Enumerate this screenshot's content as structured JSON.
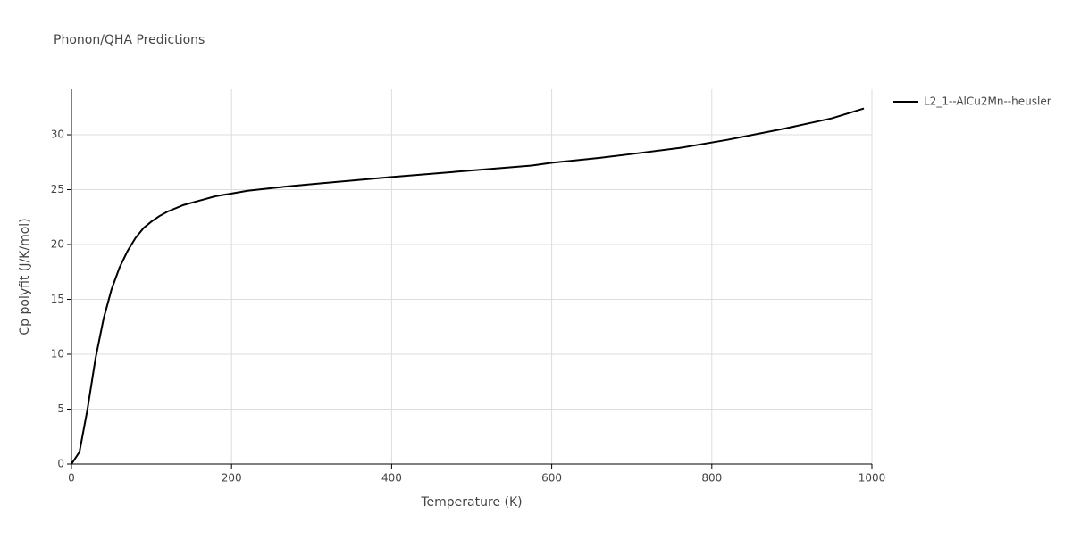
{
  "chart_data": {
    "type": "line",
    "title": "Phonon/QHA Predictions",
    "x_label": "Temperature (K)",
    "y_label": "Cp polyfit (J/K/mol)",
    "x": [
      0,
      10,
      20,
      30,
      40,
      50,
      60,
      70,
      80,
      90,
      100,
      110,
      120,
      140,
      160,
      180,
      200,
      220,
      270,
      300,
      400,
      500,
      575,
      600,
      660,
      700,
      760,
      820,
      890,
      950,
      990
    ],
    "series": [
      {
        "name": "L2_1--AlCu2Mn--heusler",
        "color": "#000000",
        "values": [
          0,
          1.1,
          5,
          9.6,
          13.2,
          15.9,
          17.9,
          19.4,
          20.6,
          21.5,
          22.1,
          22.6,
          23.0,
          23.6,
          24.0,
          24.4,
          24.65,
          24.9,
          25.3,
          25.5,
          26.15,
          26.75,
          27.2,
          27.45,
          27.9,
          28.25,
          28.8,
          29.55,
          30.55,
          31.5,
          32.4
        ]
      }
    ],
    "xlim": [
      0,
      1000
    ],
    "xticks": [
      0,
      200,
      400,
      600,
      800,
      1000
    ],
    "ylim": [
      0,
      34.15
    ],
    "yticks": [
      0,
      5,
      10,
      15,
      20,
      25,
      30
    ],
    "grid": true,
    "legend": "right"
  }
}
